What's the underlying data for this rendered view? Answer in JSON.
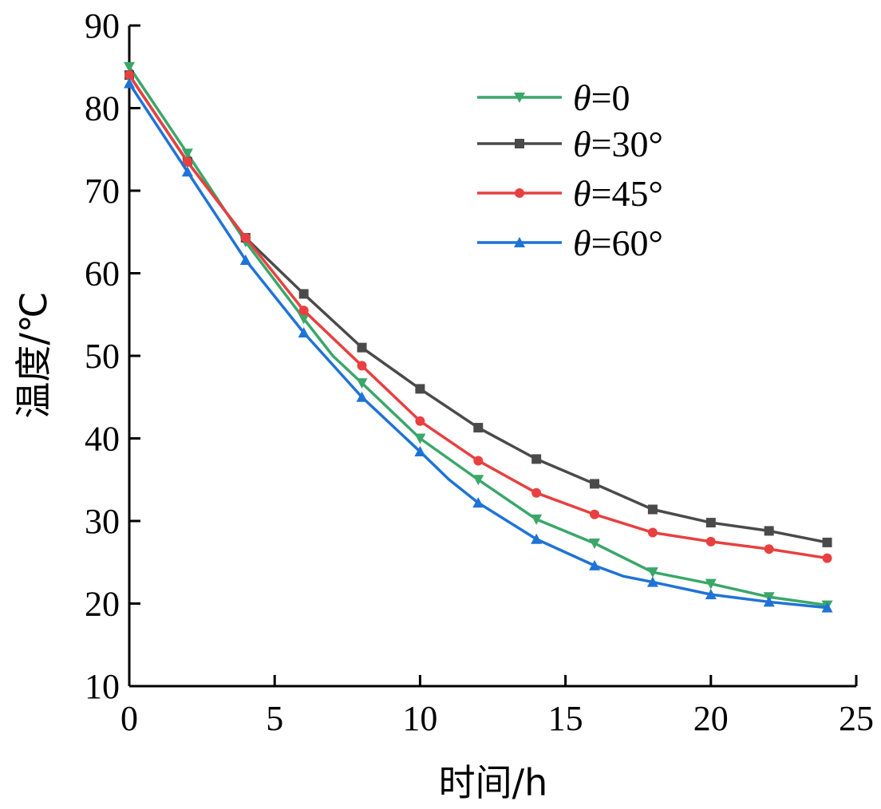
{
  "chart_data": {
    "type": "line",
    "title": "",
    "xlabel": "时间/h",
    "ylabel": "温度/℃",
    "xlim": [
      0,
      25
    ],
    "ylim": [
      10,
      90
    ],
    "xticks": [
      "0",
      "5",
      "10",
      "15",
      "20",
      "25"
    ],
    "yticks": [
      "10",
      "20",
      "30",
      "40",
      "50",
      "60",
      "70",
      "80",
      "90"
    ],
    "grid": false,
    "legend_position": "top-right",
    "series": [
      {
        "name": "θ=0",
        "symbol": "θ",
        "suffix": "=0",
        "color": "#3aa769",
        "marker": "triangle-down",
        "x": [
          0,
          2,
          4,
          6,
          7,
          8,
          10,
          12,
          14,
          16,
          18,
          20,
          22,
          24
        ],
        "y": [
          85.0,
          74.5,
          63.8,
          54.5,
          50.0,
          46.7,
          40.0,
          35.0,
          30.2,
          27.3,
          23.8,
          22.4,
          20.8,
          19.8
        ]
      },
      {
        "name": "θ=30°",
        "symbol": "θ",
        "suffix": "=30°",
        "color": "#4a4a4a",
        "marker": "square",
        "x": [
          0,
          2,
          4,
          6,
          8,
          10,
          12,
          14,
          16,
          18,
          20,
          22,
          24
        ],
        "y": [
          84.0,
          73.5,
          64.3,
          57.5,
          51.0,
          46.0,
          41.3,
          37.5,
          34.5,
          31.4,
          29.8,
          28.8,
          27.4
        ]
      },
      {
        "name": "θ=45°",
        "symbol": "θ",
        "suffix": "=45°",
        "color": "#e84040",
        "marker": "circle",
        "x": [
          0,
          2,
          4,
          6,
          8,
          10,
          12,
          14,
          16,
          18,
          20,
          22,
          24
        ],
        "y": [
          84.0,
          73.5,
          64.3,
          55.5,
          48.8,
          42.1,
          37.3,
          33.4,
          30.8,
          28.6,
          27.5,
          26.6,
          25.5
        ]
      },
      {
        "name": "θ=60°",
        "symbol": "θ",
        "suffix": "=60°",
        "color": "#1f73d6",
        "marker": "triangle-up",
        "x": [
          0,
          2,
          4,
          6,
          8,
          10,
          11,
          12,
          14,
          16,
          17,
          18,
          20,
          22,
          24
        ],
        "y": [
          83.0,
          72.3,
          61.6,
          52.8,
          45.0,
          38.4,
          35.0,
          32.2,
          27.8,
          24.6,
          23.3,
          22.6,
          21.1,
          20.2,
          19.5
        ]
      }
    ]
  }
}
